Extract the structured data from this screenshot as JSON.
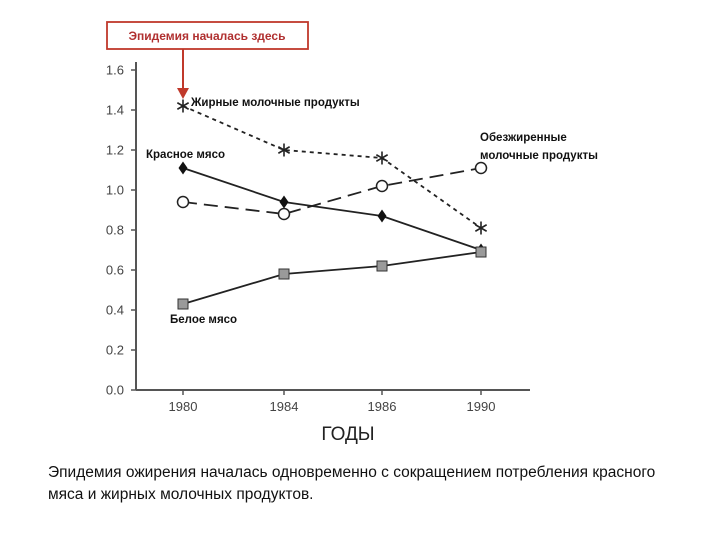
{
  "chart_data": {
    "type": "line",
    "categories": [
      "1980",
      "1984",
      "1986",
      "1990"
    ],
    "xlabel": "ГОДЫ",
    "ylabel": "",
    "ylim": [
      0.0,
      1.6
    ],
    "yticks": [
      "0.0",
      "0.2",
      "0.4",
      "0.6",
      "0.8",
      "1.0",
      "1.2",
      "1.4",
      "1.6"
    ],
    "grid": false,
    "series": [
      {
        "name": "Жирные молочные продукты",
        "marker": "asterisk",
        "line": "dotted",
        "values": [
          1.42,
          1.2,
          1.16,
          0.81
        ]
      },
      {
        "name": "Обезжиренные молочные продукты",
        "marker": "circle-open",
        "line": "dashed",
        "values": [
          0.94,
          0.88,
          1.02,
          1.11
        ]
      },
      {
        "name": "Красное мясо",
        "marker": "diamond-filled",
        "line": "solid",
        "values": [
          1.11,
          0.94,
          0.87,
          0.7
        ]
      },
      {
        "name": "Белое мясо",
        "marker": "square-gray",
        "line": "solid",
        "values": [
          0.43,
          0.58,
          0.62,
          0.69
        ]
      }
    ],
    "labels": {
      "fat_dairy": "Жирные молочные продукты",
      "skim_dairy_line1": "Обезжиренные",
      "skim_dairy_line2": "молочные продукты",
      "red_meat": "Красное мясо",
      "white_meat": "Белое мясо"
    },
    "annotation": {
      "text": "Эпидемия началась здесь",
      "category": "1980"
    }
  },
  "caption": "Эпидемия ожирения началась одновременно с сокращением потребления красного мяса и жирных молочных продуктов.",
  "colors": {
    "annotation": "#c0392b",
    "line": "#222222",
    "axis": "#555555",
    "white_meat_fill": "#9a9a9a"
  }
}
